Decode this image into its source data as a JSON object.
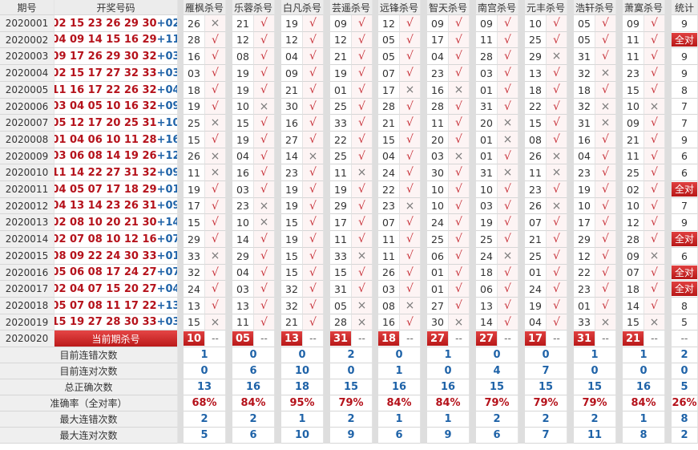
{
  "headers": {
    "issue": "期号",
    "draw": "开奖号码",
    "stats": "统计"
  },
  "experts": [
    {
      "name": "雁枫杀号",
      "picks": [
        [
          "26",
          "×"
        ],
        [
          "28",
          "√"
        ],
        [
          "16",
          "√"
        ],
        [
          "03",
          "√"
        ],
        [
          "18",
          "√"
        ],
        [
          "19",
          "√"
        ],
        [
          "25",
          "×"
        ],
        [
          "15",
          "√"
        ],
        [
          "26",
          "×"
        ],
        [
          "11",
          "×"
        ],
        [
          "19",
          "√"
        ],
        [
          "17",
          "√"
        ],
        [
          "15",
          "√"
        ],
        [
          "29",
          "√"
        ],
        [
          "33",
          "×"
        ],
        [
          "32",
          "√"
        ],
        [
          "24",
          "√"
        ],
        [
          "13",
          "√"
        ],
        [
          "15",
          "×"
        ]
      ],
      "current": "10",
      "stats": [
        "1",
        "0",
        "13",
        "68%",
        "2",
        "5"
      ]
    },
    {
      "name": "乐蓉杀号",
      "picks": [
        [
          "21",
          "√"
        ],
        [
          "12",
          "√"
        ],
        [
          "08",
          "√"
        ],
        [
          "19",
          "√"
        ],
        [
          "19",
          "√"
        ],
        [
          "10",
          "×"
        ],
        [
          "15",
          "√"
        ],
        [
          "19",
          "√"
        ],
        [
          "04",
          "√"
        ],
        [
          "16",
          "√"
        ],
        [
          "03",
          "√"
        ],
        [
          "23",
          "×"
        ],
        [
          "10",
          "×"
        ],
        [
          "14",
          "√"
        ],
        [
          "29",
          "√"
        ],
        [
          "04",
          "√"
        ],
        [
          "03",
          "√"
        ],
        [
          "13",
          "√"
        ],
        [
          "11",
          "√"
        ]
      ],
      "current": "05",
      "stats": [
        "0",
        "6",
        "16",
        "84%",
        "2",
        "6"
      ]
    },
    {
      "name": "白凡杀号",
      "picks": [
        [
          "19",
          "√"
        ],
        [
          "12",
          "√"
        ],
        [
          "04",
          "√"
        ],
        [
          "09",
          "√"
        ],
        [
          "21",
          "√"
        ],
        [
          "30",
          "√"
        ],
        [
          "16",
          "√"
        ],
        [
          "27",
          "√"
        ],
        [
          "14",
          "×"
        ],
        [
          "23",
          "√"
        ],
        [
          "19",
          "√"
        ],
        [
          "19",
          "√"
        ],
        [
          "15",
          "√"
        ],
        [
          "19",
          "√"
        ],
        [
          "15",
          "√"
        ],
        [
          "15",
          "√"
        ],
        [
          "32",
          "√"
        ],
        [
          "32",
          "√"
        ],
        [
          "21",
          "√"
        ]
      ],
      "current": "13",
      "stats": [
        "0",
        "10",
        "18",
        "95%",
        "1",
        "10"
      ]
    },
    {
      "name": "芸遥杀号",
      "picks": [
        [
          "09",
          "√"
        ],
        [
          "12",
          "√"
        ],
        [
          "21",
          "√"
        ],
        [
          "19",
          "√"
        ],
        [
          "01",
          "√"
        ],
        [
          "25",
          "√"
        ],
        [
          "33",
          "√"
        ],
        [
          "22",
          "√"
        ],
        [
          "25",
          "√"
        ],
        [
          "11",
          "×"
        ],
        [
          "19",
          "√"
        ],
        [
          "29",
          "√"
        ],
        [
          "17",
          "√"
        ],
        [
          "11",
          "√"
        ],
        [
          "33",
          "×"
        ],
        [
          "15",
          "√"
        ],
        [
          "31",
          "√"
        ],
        [
          "05",
          "×"
        ],
        [
          "28",
          "×"
        ]
      ],
      "current": "31",
      "stats": [
        "2",
        "0",
        "15",
        "79%",
        "2",
        "9"
      ]
    },
    {
      "name": "远锋杀号",
      "picks": [
        [
          "12",
          "√"
        ],
        [
          "05",
          "√"
        ],
        [
          "05",
          "√"
        ],
        [
          "07",
          "√"
        ],
        [
          "17",
          "×"
        ],
        [
          "28",
          "√"
        ],
        [
          "21",
          "√"
        ],
        [
          "15",
          "√"
        ],
        [
          "04",
          "√"
        ],
        [
          "24",
          "√"
        ],
        [
          "22",
          "√"
        ],
        [
          "23",
          "×"
        ],
        [
          "07",
          "√"
        ],
        [
          "11",
          "√"
        ],
        [
          "11",
          "√"
        ],
        [
          "26",
          "√"
        ],
        [
          "03",
          "√"
        ],
        [
          "08",
          "×"
        ],
        [
          "16",
          "√"
        ]
      ],
      "current": "18",
      "stats": [
        "0",
        "1",
        "16",
        "84%",
        "1",
        "6"
      ]
    },
    {
      "name": "智天杀号",
      "picks": [
        [
          "09",
          "√"
        ],
        [
          "17",
          "√"
        ],
        [
          "04",
          "√"
        ],
        [
          "23",
          "√"
        ],
        [
          "16",
          "×"
        ],
        [
          "28",
          "√"
        ],
        [
          "11",
          "√"
        ],
        [
          "20",
          "√"
        ],
        [
          "03",
          "×"
        ],
        [
          "30",
          "√"
        ],
        [
          "10",
          "√"
        ],
        [
          "10",
          "√"
        ],
        [
          "24",
          "√"
        ],
        [
          "25",
          "√"
        ],
        [
          "06",
          "√"
        ],
        [
          "01",
          "√"
        ],
        [
          "01",
          "√"
        ],
        [
          "27",
          "√"
        ],
        [
          "30",
          "×"
        ]
      ],
      "current": "27",
      "stats": [
        "1",
        "0",
        "16",
        "84%",
        "1",
        "9"
      ]
    },
    {
      "name": "南宫杀号",
      "picks": [
        [
          "09",
          "√"
        ],
        [
          "11",
          "√"
        ],
        [
          "28",
          "√"
        ],
        [
          "03",
          "√"
        ],
        [
          "01",
          "√"
        ],
        [
          "31",
          "√"
        ],
        [
          "20",
          "×"
        ],
        [
          "01",
          "×"
        ],
        [
          "01",
          "√"
        ],
        [
          "31",
          "×"
        ],
        [
          "10",
          "√"
        ],
        [
          "03",
          "√"
        ],
        [
          "19",
          "√"
        ],
        [
          "25",
          "√"
        ],
        [
          "24",
          "×"
        ],
        [
          "18",
          "√"
        ],
        [
          "06",
          "√"
        ],
        [
          "13",
          "√"
        ],
        [
          "14",
          "√"
        ]
      ],
      "current": "27",
      "stats": [
        "0",
        "4",
        "15",
        "79%",
        "2",
        "6"
      ]
    },
    {
      "name": "元丰杀号",
      "picks": [
        [
          "10",
          "√"
        ],
        [
          "25",
          "√"
        ],
        [
          "29",
          "×"
        ],
        [
          "13",
          "√"
        ],
        [
          "18",
          "√"
        ],
        [
          "22",
          "√"
        ],
        [
          "15",
          "√"
        ],
        [
          "08",
          "√"
        ],
        [
          "26",
          "×"
        ],
        [
          "11",
          "×"
        ],
        [
          "23",
          "√"
        ],
        [
          "26",
          "×"
        ],
        [
          "07",
          "√"
        ],
        [
          "21",
          "√"
        ],
        [
          "25",
          "√"
        ],
        [
          "01",
          "√"
        ],
        [
          "24",
          "√"
        ],
        [
          "19",
          "√"
        ],
        [
          "04",
          "√"
        ]
      ],
      "current": "17",
      "stats": [
        "0",
        "7",
        "15",
        "79%",
        "2",
        "7"
      ]
    },
    {
      "name": "浩轩杀号",
      "picks": [
        [
          "05",
          "√"
        ],
        [
          "05",
          "√"
        ],
        [
          "31",
          "√"
        ],
        [
          "32",
          "×"
        ],
        [
          "18",
          "√"
        ],
        [
          "32",
          "×"
        ],
        [
          "31",
          "×"
        ],
        [
          "16",
          "√"
        ],
        [
          "04",
          "√"
        ],
        [
          "23",
          "√"
        ],
        [
          "19",
          "√"
        ],
        [
          "10",
          "√"
        ],
        [
          "17",
          "√"
        ],
        [
          "29",
          "√"
        ],
        [
          "12",
          "√"
        ],
        [
          "22",
          "√"
        ],
        [
          "23",
          "√"
        ],
        [
          "01",
          "√"
        ],
        [
          "33",
          "×"
        ]
      ],
      "current": "31",
      "stats": [
        "1",
        "0",
        "15",
        "79%",
        "2",
        "11"
      ]
    },
    {
      "name": "萧寞杀号",
      "picks": [
        [
          "09",
          "√"
        ],
        [
          "11",
          "√"
        ],
        [
          "11",
          "√"
        ],
        [
          "23",
          "√"
        ],
        [
          "15",
          "√"
        ],
        [
          "10",
          "×"
        ],
        [
          "09",
          "√"
        ],
        [
          "21",
          "√"
        ],
        [
          "11",
          "√"
        ],
        [
          "25",
          "√"
        ],
        [
          "02",
          "√"
        ],
        [
          "10",
          "√"
        ],
        [
          "12",
          "√"
        ],
        [
          "28",
          "√"
        ],
        [
          "09",
          "×"
        ],
        [
          "07",
          "√"
        ],
        [
          "18",
          "√"
        ],
        [
          "14",
          "√"
        ],
        [
          "15",
          "×"
        ]
      ],
      "current": "21",
      "stats": [
        "1",
        "0",
        "16",
        "84%",
        "1",
        "8"
      ]
    }
  ],
  "rows": [
    {
      "issue": "2020001",
      "red": "02 15 23 26 29 30",
      "blue": "+02",
      "stat": "9"
    },
    {
      "issue": "2020002",
      "red": "04 09 14 15 16 29",
      "blue": "+11",
      "stat": "全对"
    },
    {
      "issue": "2020003",
      "red": "09 17 26 29 30 32",
      "blue": "+03",
      "stat": "9"
    },
    {
      "issue": "2020004",
      "red": "02 15 17 27 32 33",
      "blue": "+03",
      "stat": "9"
    },
    {
      "issue": "2020005",
      "red": "11 16 17 22 26 32",
      "blue": "+04",
      "stat": "8"
    },
    {
      "issue": "2020006",
      "red": "03 04 05 10 16 32",
      "blue": "+09",
      "stat": "7"
    },
    {
      "issue": "2020007",
      "red": "05 12 17 20 25 31",
      "blue": "+10",
      "stat": "7"
    },
    {
      "issue": "2020008",
      "red": "01 04 06 10 11 28",
      "blue": "+16",
      "stat": "9"
    },
    {
      "issue": "2020009",
      "red": "03 06 08 14 19 26",
      "blue": "+12",
      "stat": "6"
    },
    {
      "issue": "2020010",
      "red": "11 14 22 27 31 32",
      "blue": "+09",
      "stat": "6"
    },
    {
      "issue": "2020011",
      "red": "04 05 07 17 18 29",
      "blue": "+01",
      "stat": "全对"
    },
    {
      "issue": "2020012",
      "red": "04 13 14 23 26 31",
      "blue": "+09",
      "stat": "7"
    },
    {
      "issue": "2020013",
      "red": "02 08 10 20 21 30",
      "blue": "+14",
      "stat": "9"
    },
    {
      "issue": "2020014",
      "red": "02 07 08 10 12 16",
      "blue": "+07",
      "stat": "全对"
    },
    {
      "issue": "2020015",
      "red": "08 09 22 24 30 33",
      "blue": "+01",
      "stat": "6"
    },
    {
      "issue": "2020016",
      "red": "05 06 08 17 24 27",
      "blue": "+07",
      "stat": "全对"
    },
    {
      "issue": "2020017",
      "red": "02 04 07 15 20 27",
      "blue": "+04",
      "stat": "全对"
    },
    {
      "issue": "2020018",
      "red": "05 07 08 11 17 22",
      "blue": "+13",
      "stat": "8"
    },
    {
      "issue": "2020019",
      "red": "15 19 27 28 30 33",
      "blue": "+03",
      "stat": "5"
    }
  ],
  "current_row": {
    "issue": "2020020",
    "label": "当前期杀号",
    "dash": "--"
  },
  "stats_rows": {
    "labels": [
      "目前连错次数",
      "目前连对次数",
      "总正确次数",
      "准确率（全对率）",
      "最大连错次数",
      "最大连对次数"
    ],
    "totals": [
      "2",
      "0",
      "5",
      "26%",
      "8",
      "2"
    ]
  },
  "special_label": "全对",
  "colors": {
    "red": "#b5121b",
    "blue": "#1f63a8",
    "badge": "#c81e1e"
  }
}
